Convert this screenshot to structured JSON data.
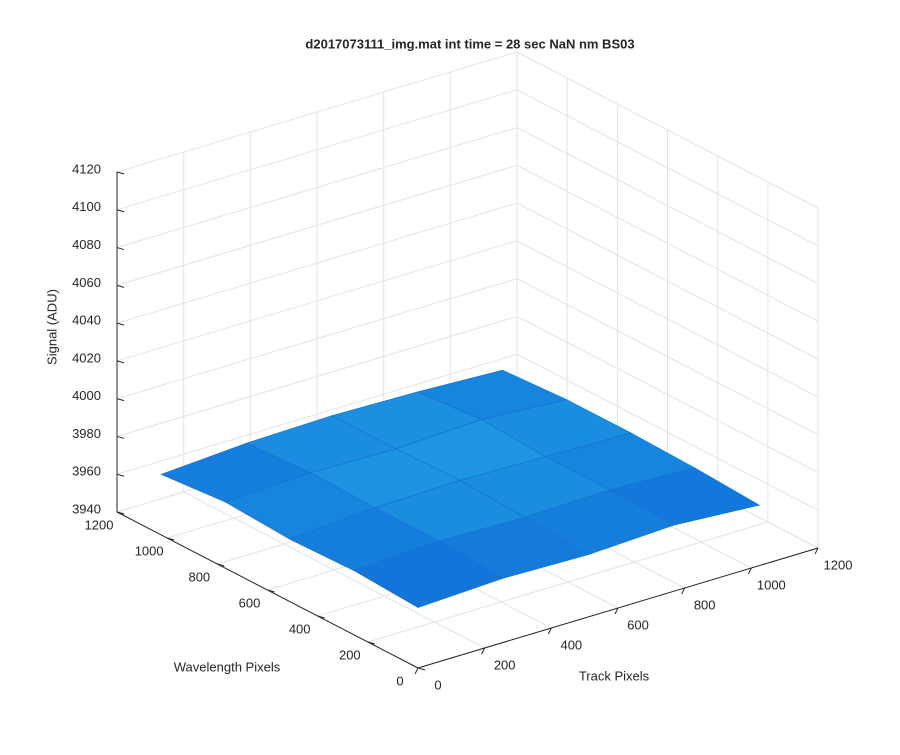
{
  "chart_data": {
    "type": "surface",
    "title": "d2017073111_img.mat int time = 28 sec  NaN nm BS03",
    "xlabel": "Track Pixels",
    "ylabel": "Wavelength Pixels",
    "zlabel": "Signal (ADU)",
    "x": [
      0,
      256,
      512,
      768,
      1024
    ],
    "y": [
      0,
      256,
      512,
      768,
      1024
    ],
    "z": [
      [
        3972,
        3974,
        3973,
        3975,
        3972
      ],
      [
        3974,
        3976,
        3975,
        3976,
        3974
      ],
      [
        3973,
        3976,
        3977,
        3976,
        3975
      ],
      [
        3975,
        3977,
        3976,
        3978,
        3975
      ],
      [
        3972,
        3975,
        3976,
        3975,
        3973
      ]
    ],
    "xlim": [
      0,
      1200
    ],
    "ylim": [
      0,
      1200
    ],
    "zlim": [
      3940,
      4120
    ],
    "xticks": [
      0,
      200,
      400,
      600,
      800,
      1000,
      1200
    ],
    "yticks": [
      0,
      200,
      400,
      600,
      800,
      1000,
      1200
    ],
    "zticks": [
      3940,
      3960,
      3980,
      4000,
      4020,
      4040,
      4060,
      4080,
      4100,
      4120
    ],
    "grid": true,
    "colormap": [
      "#0a5ed6",
      "#22a4e3"
    ]
  }
}
